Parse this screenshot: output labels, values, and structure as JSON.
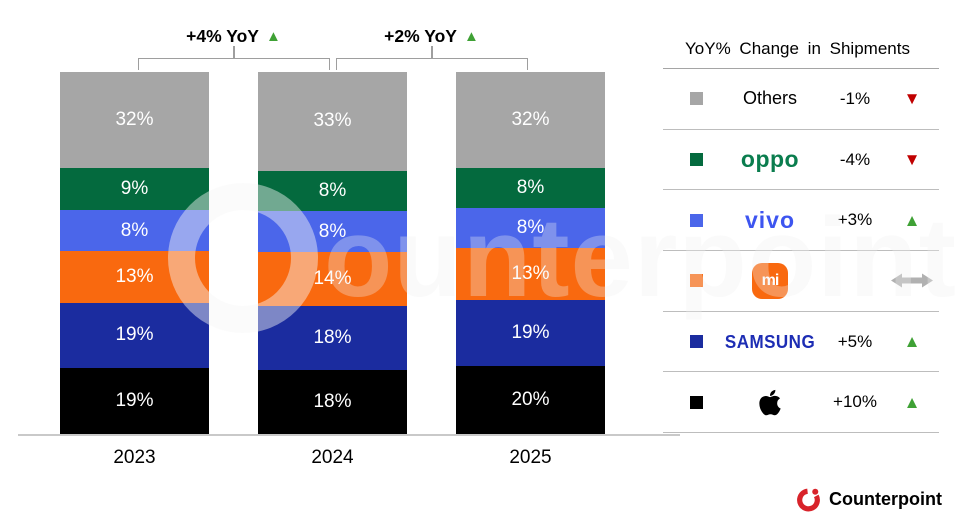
{
  "chart_data": {
    "type": "bar",
    "stacked": true,
    "title": "",
    "categories": [
      "2023",
      "2024",
      "2025"
    ],
    "unit": "%",
    "ylim": [
      0,
      100
    ],
    "stack_order": "top-to-bottom",
    "series": [
      {
        "name": "Others",
        "color": "#a6a6a6",
        "values": [
          32,
          33,
          32
        ]
      },
      {
        "name": "OPPO",
        "color": "#046a3e",
        "values": [
          9,
          8,
          8
        ]
      },
      {
        "name": "vivo",
        "color": "#4b66ea",
        "values": [
          8,
          8,
          8
        ]
      },
      {
        "name": "Xiaomi",
        "color": "#f9690f",
        "values": [
          13,
          14,
          13
        ]
      },
      {
        "name": "Samsung",
        "color": "#1b2c9f",
        "values": [
          19,
          18,
          19
        ]
      },
      {
        "name": "Apple",
        "color": "#000000",
        "values": [
          19,
          18,
          20
        ]
      }
    ],
    "annotations": [
      {
        "label": "+4% YoY",
        "trend": "up",
        "between": [
          "2023",
          "2024"
        ]
      },
      {
        "label": "+2% YoY",
        "trend": "up",
        "between": [
          "2024",
          "2025"
        ]
      }
    ]
  },
  "legend": {
    "title": "YoY% Change in Shipments",
    "rows": [
      {
        "brand": "Others",
        "logo": "text",
        "swatch": "#a6a6a6",
        "wordmark_color": "#000000",
        "change": "-1%",
        "trend": "down"
      },
      {
        "brand": "oppo",
        "logo": "oppo",
        "swatch": "#046a3e",
        "wordmark_color": "#0a7d4e",
        "change": "-4%",
        "trend": "down"
      },
      {
        "brand": "vivo",
        "logo": "vivo",
        "swatch": "#4b66ea",
        "wordmark_color": "#3d55f0",
        "change": "+3%",
        "trend": "up"
      },
      {
        "brand": "mi",
        "logo": "mi",
        "swatch": "#f9690f",
        "wordmark_color": "#f9690f",
        "change": "",
        "trend": "flat"
      },
      {
        "brand": "SAMSUNG",
        "logo": "samsung",
        "swatch": "#1b2c9f",
        "wordmark_color": "#1d2db4",
        "change": "+5%",
        "trend": "up"
      },
      {
        "brand": "Apple",
        "logo": "apple",
        "swatch": "#000000",
        "wordmark_color": "#000000",
        "change": "+10%",
        "trend": "up"
      }
    ]
  },
  "colors": {
    "trend_up": "#3fa135",
    "trend_down": "#c00000",
    "trend_flat": "#b1b1b1",
    "brand_red": "#d8232a"
  },
  "watermark": "Counterpoint",
  "footer": {
    "brand": "Counterpoint"
  }
}
